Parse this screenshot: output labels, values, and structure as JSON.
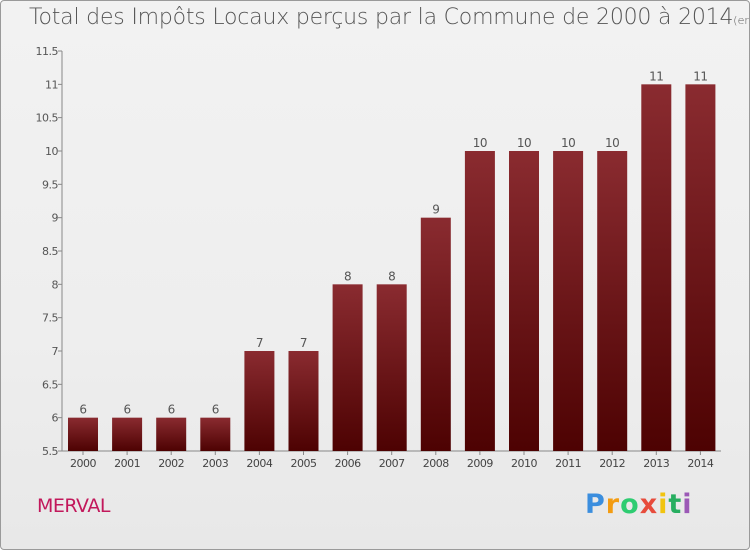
{
  "chart_data": {
    "type": "bar",
    "title": "Total des Impôts Locaux perçus par la Commune de 2000 à 2014",
    "subtitle": "(en milliers d'€)",
    "categories": [
      "2000",
      "2001",
      "2002",
      "2003",
      "2004",
      "2005",
      "2006",
      "2007",
      "2008",
      "2009",
      "2010",
      "2011",
      "2012",
      "2013",
      "2014"
    ],
    "values": [
      6,
      6,
      6,
      6,
      7,
      7,
      8,
      8,
      9,
      10,
      10,
      10,
      10,
      11,
      11
    ],
    "labels": [
      "6",
      "6",
      "6",
      "6",
      "7",
      "7",
      "8",
      "8",
      "9",
      "10",
      "10",
      "10",
      "10",
      "11",
      "11"
    ],
    "ylim": [
      5.5,
      11.5
    ],
    "yticks": [
      "5.5",
      "6",
      "6.5",
      "7",
      "7.5",
      "8",
      "8.5",
      "9",
      "9.5",
      "10",
      "10.5",
      "11",
      "11.5"
    ],
    "xlabel": "",
    "ylabel": "",
    "grid": false,
    "bar_color": "#7a1a1f"
  },
  "footer": {
    "commune": "MERVAL",
    "brand_letters": [
      "P",
      "r",
      "o",
      "x",
      "i",
      "t",
      "i"
    ],
    "brand_colors": [
      "#3b8ede",
      "#f39c12",
      "#2ecc71",
      "#e74c3c",
      "#f1c40f",
      "#27ae60",
      "#9b59b6"
    ]
  }
}
